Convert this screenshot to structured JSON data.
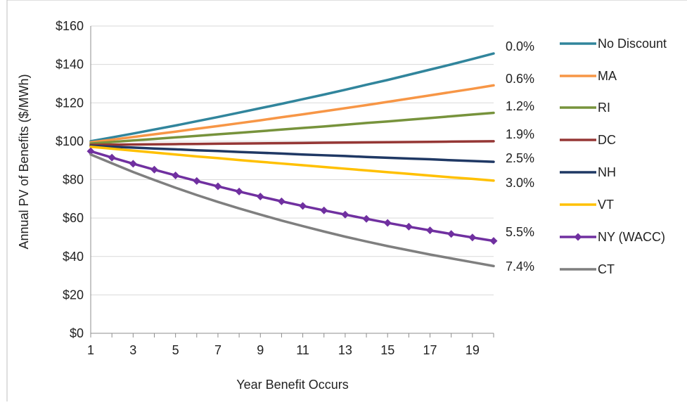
{
  "chart_data": {
    "type": "line",
    "title": "",
    "xlabel": "Year Benefit Occurs",
    "ylabel": "Annual PV of Benefits ($/MWh)",
    "xlim": [
      1,
      20
    ],
    "ylim": [
      0,
      160
    ],
    "x_ticks": [
      "1",
      "3",
      "5",
      "7",
      "9",
      "11",
      "13",
      "15",
      "17",
      "19"
    ],
    "y_ticks": [
      "$0",
      "$20",
      "$40",
      "$60",
      "$80",
      "$100",
      "$120",
      "$140",
      "$160"
    ],
    "grid": "horizontal",
    "legend": "right",
    "series": [
      {
        "name": "No Discount",
        "color": "#31859c",
        "marker": "none",
        "rate_label": "0.0%",
        "values": [
          100.0,
          102.0,
          104.0,
          106.1,
          108.2,
          110.4,
          112.6,
          114.9,
          117.2,
          119.5,
          121.9,
          124.3,
          126.8,
          129.4,
          131.9,
          134.6,
          137.3,
          140.0,
          142.8,
          145.7
        ]
      },
      {
        "name": "MA",
        "color": "#f79646",
        "marker": "none",
        "rate_label": "0.6%",
        "values": [
          99.4,
          100.8,
          102.2,
          103.6,
          105.0,
          106.5,
          107.9,
          109.4,
          110.9,
          112.5,
          114.0,
          115.6,
          117.2,
          118.8,
          120.5,
          122.2,
          123.9,
          125.6,
          127.3,
          129.1
        ]
      },
      {
        "name": "RI",
        "color": "#77933c",
        "marker": "none",
        "rate_label": "1.2%",
        "values": [
          98.8,
          99.6,
          100.4,
          101.2,
          102.0,
          102.8,
          103.6,
          104.4,
          105.2,
          106.1,
          106.9,
          107.7,
          108.6,
          109.5,
          110.3,
          111.2,
          112.1,
          113.0,
          113.9,
          114.8
        ]
      },
      {
        "name": "DC",
        "color": "#953735",
        "marker": "none",
        "rate_label": "1.9%",
        "values": [
          98.1,
          98.2,
          98.3,
          98.4,
          98.5,
          98.6,
          98.7,
          98.8,
          98.9,
          99.0,
          99.1,
          99.2,
          99.3,
          99.4,
          99.5,
          99.6,
          99.7,
          99.8,
          99.9,
          100.0
        ]
      },
      {
        "name": "NH",
        "color": "#1f3864",
        "marker": "none",
        "rate_label": "2.5%",
        "values": [
          97.6,
          97.1,
          96.7,
          96.2,
          95.8,
          95.3,
          94.9,
          94.4,
          94.0,
          93.6,
          93.1,
          92.7,
          92.3,
          91.8,
          91.4,
          91.0,
          90.6,
          90.1,
          89.7,
          89.3
        ]
      },
      {
        "name": "VT",
        "color": "#ffc000",
        "marker": "none",
        "rate_label": "3.0%",
        "values": [
          97.1,
          96.1,
          95.1,
          94.1,
          93.1,
          92.1,
          91.2,
          90.2,
          89.3,
          88.4,
          87.5,
          86.6,
          85.7,
          84.8,
          83.9,
          83.0,
          82.1,
          81.2,
          80.4,
          79.5
        ]
      },
      {
        "name": "NY (WACC)",
        "color": "#7030a0",
        "marker": "diamond",
        "rate_label": "5.5%",
        "values": [
          94.8,
          91.5,
          88.3,
          85.2,
          82.2,
          79.3,
          76.5,
          73.8,
          71.2,
          68.7,
          66.3,
          64.0,
          61.8,
          59.6,
          57.5,
          55.5,
          53.6,
          51.7,
          49.9,
          48.1
        ]
      },
      {
        "name": "CT",
        "color": "#7f7f7f",
        "marker": "none",
        "rate_label": "7.4%",
        "values": [
          93.1,
          88.5,
          84.0,
          79.8,
          75.8,
          72.0,
          68.4,
          65.0,
          61.8,
          58.7,
          55.8,
          53.0,
          50.3,
          47.8,
          45.4,
          43.2,
          41.0,
          39.0,
          37.0,
          35.0
        ]
      }
    ]
  }
}
